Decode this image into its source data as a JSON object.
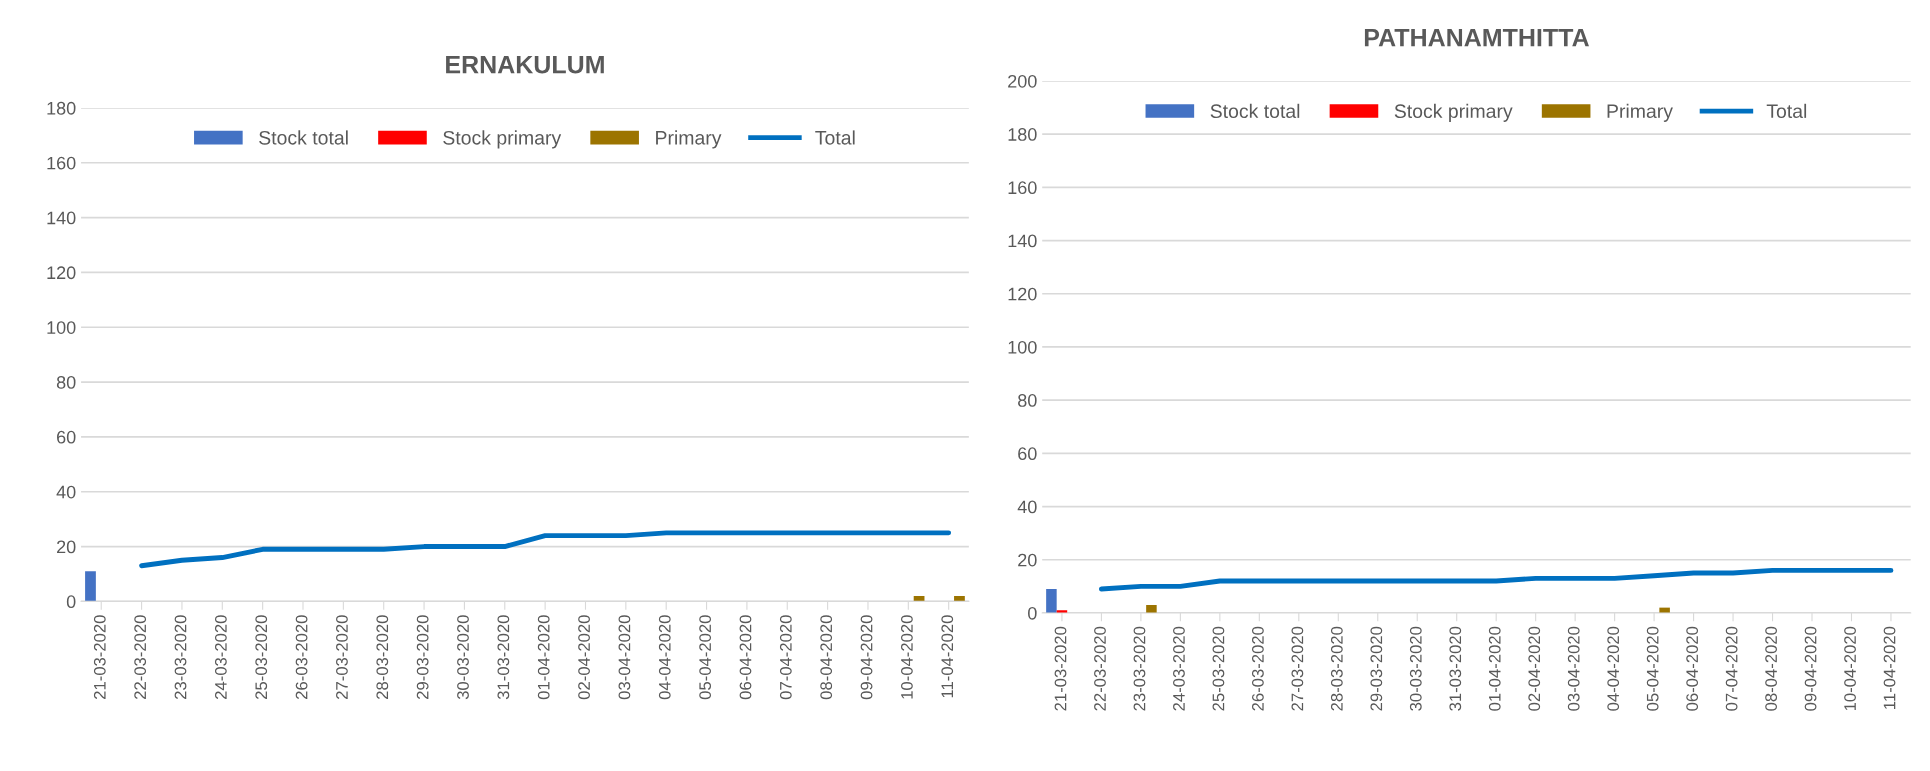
{
  "chart_data": [
    {
      "type": "bar",
      "title": "ERNAKULUM",
      "categories": [
        "21-03-2020",
        "22-03-2020",
        "23-03-2020",
        "24-03-2020",
        "25-03-2020",
        "26-03-2020",
        "27-03-2020",
        "28-03-2020",
        "29-03-2020",
        "30-03-2020",
        "31-03-2020",
        "01-04-2020",
        "02-04-2020",
        "03-04-2020",
        "04-04-2020",
        "05-04-2020",
        "06-04-2020",
        "07-04-2020",
        "08-04-2020",
        "09-04-2020",
        "10-04-2020",
        "11-04-2020"
      ],
      "series": [
        {
          "name": "Stock total",
          "color": "#4472c4",
          "values": [
            11,
            null,
            null,
            null,
            null,
            null,
            null,
            null,
            null,
            null,
            null,
            null,
            null,
            null,
            null,
            null,
            null,
            null,
            null,
            null,
            null,
            null
          ]
        },
        {
          "name": "Stock primary",
          "color": "#ff0000",
          "values": [
            null,
            null,
            null,
            null,
            null,
            null,
            null,
            null,
            null,
            null,
            null,
            null,
            null,
            null,
            null,
            null,
            null,
            null,
            null,
            null,
            null,
            null
          ]
        },
        {
          "name": "Primary",
          "color": "#9c7400",
          "values": [
            null,
            null,
            null,
            null,
            null,
            null,
            null,
            null,
            null,
            null,
            null,
            null,
            null,
            null,
            null,
            null,
            null,
            null,
            null,
            null,
            2,
            2
          ]
        },
        {
          "name": "Total",
          "type": "line",
          "color": "#0070c0",
          "values": [
            null,
            13,
            15,
            16,
            19,
            19,
            19,
            19,
            20,
            20,
            20,
            24,
            24,
            24,
            25,
            25,
            25,
            25,
            25,
            25,
            25,
            25
          ]
        }
      ],
      "ylim": [
        0,
        180
      ],
      "yticks": [
        0,
        20,
        40,
        60,
        80,
        100,
        120,
        140,
        160,
        180
      ],
      "grid": "y",
      "legend": "top",
      "marker": "none",
      "line_style": "solid"
    },
    {
      "type": "bar",
      "title": "PATHANAMTHITTA",
      "categories": [
        "21-03-2020",
        "22-03-2020",
        "23-03-2020",
        "24-03-2020",
        "25-03-2020",
        "26-03-2020",
        "27-03-2020",
        "28-03-2020",
        "29-03-2020",
        "30-03-2020",
        "31-03-2020",
        "01-04-2020",
        "02-04-2020",
        "03-04-2020",
        "04-04-2020",
        "05-04-2020",
        "06-04-2020",
        "07-04-2020",
        "08-04-2020",
        "09-04-2020",
        "10-04-2020",
        "11-04-2020"
      ],
      "series": [
        {
          "name": "Stock total",
          "color": "#4472c4",
          "values": [
            9,
            null,
            null,
            null,
            null,
            null,
            null,
            null,
            null,
            null,
            null,
            null,
            null,
            null,
            null,
            null,
            null,
            null,
            null,
            null,
            null,
            null
          ]
        },
        {
          "name": "Stock primary",
          "color": "#ff0000",
          "values": [
            1,
            null,
            null,
            null,
            null,
            null,
            null,
            null,
            null,
            null,
            null,
            null,
            null,
            null,
            null,
            null,
            null,
            null,
            null,
            null,
            null,
            null
          ]
        },
        {
          "name": "Primary",
          "color": "#9c7400",
          "values": [
            null,
            null,
            3,
            null,
            null,
            null,
            null,
            null,
            null,
            null,
            null,
            null,
            null,
            null,
            null,
            2,
            null,
            null,
            null,
            null,
            null,
            null
          ]
        },
        {
          "name": "Total",
          "type": "line",
          "color": "#0070c0",
          "values": [
            null,
            9,
            10,
            10,
            12,
            12,
            12,
            12,
            12,
            12,
            12,
            12,
            13,
            13,
            13,
            14,
            15,
            15,
            16,
            16,
            16,
            16
          ]
        }
      ],
      "ylim": [
        0,
        200
      ],
      "yticks": [
        0,
        20,
        40,
        60,
        80,
        100,
        120,
        140,
        160,
        180,
        200
      ],
      "grid": "y",
      "legend": "top",
      "marker": "none",
      "line_style": "solid"
    }
  ]
}
